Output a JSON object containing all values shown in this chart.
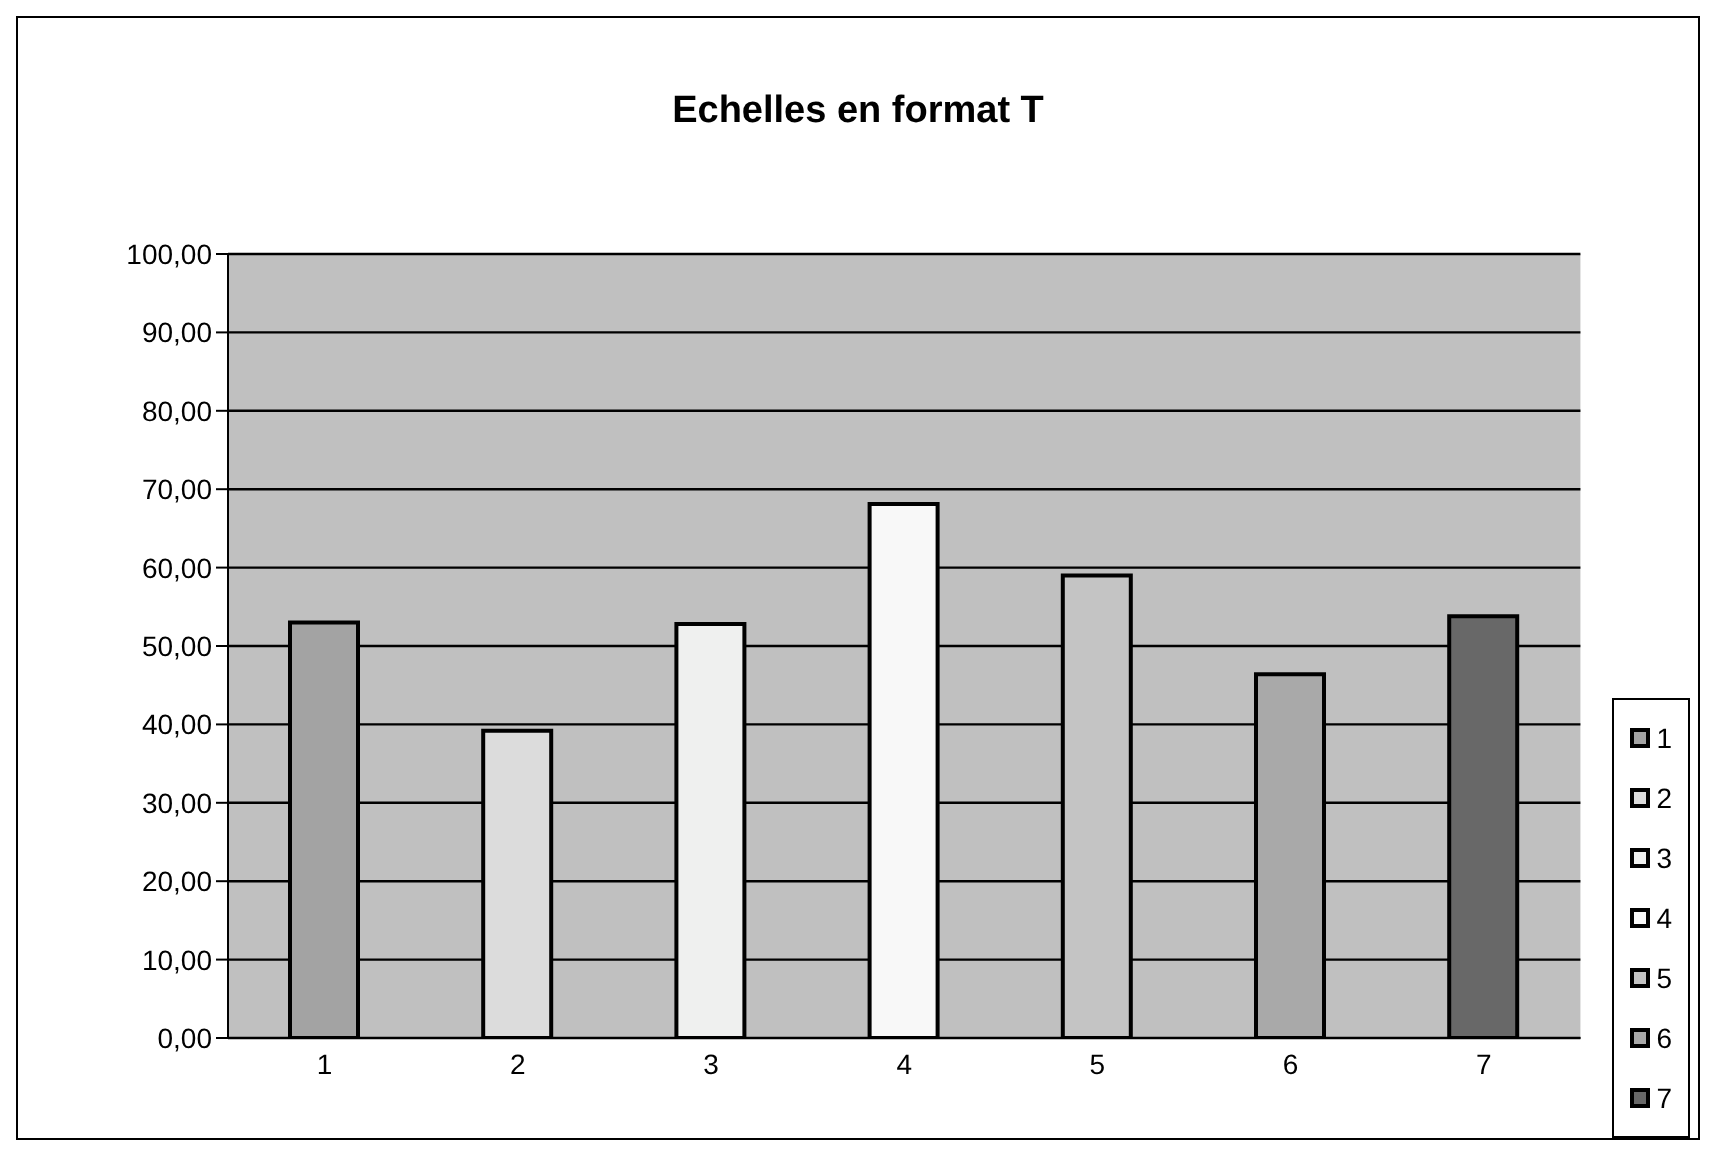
{
  "chart_data": {
    "type": "bar",
    "title": "Echelles en format T",
    "categories": [
      "1",
      "2",
      "3",
      "4",
      "5",
      "6",
      "7"
    ],
    "stacked": true,
    "series": [
      {
        "name": "1",
        "color": "#a3a3a3",
        "values": [
          53,
          null,
          null,
          null,
          null,
          null,
          null
        ]
      },
      {
        "name": "2",
        "color": "#dcdcdc",
        "values": [
          null,
          39.2,
          null,
          null,
          null,
          null,
          null
        ]
      },
      {
        "name": "3",
        "color": "#eff0ef",
        "values": [
          null,
          null,
          52.8,
          null,
          null,
          null,
          null
        ]
      },
      {
        "name": "4",
        "color": "#f8f8f8",
        "values": [
          null,
          null,
          null,
          68.1,
          null,
          null,
          null
        ]
      },
      {
        "name": "5",
        "color": "#c4c4c4",
        "values": [
          null,
          null,
          null,
          null,
          59,
          null,
          null
        ]
      },
      {
        "name": "6",
        "color": "#a9a9a9",
        "values": [
          null,
          null,
          null,
          null,
          null,
          46.4,
          null
        ]
      },
      {
        "name": "7",
        "color": "#686868",
        "values": [
          null,
          null,
          null,
          null,
          null,
          null,
          53.8
        ]
      }
    ],
    "ylim": [
      0,
      100
    ],
    "yticks": [
      {
        "value": 0,
        "label": "0,00"
      },
      {
        "value": 10,
        "label": "10,00"
      },
      {
        "value": 20,
        "label": "20,00"
      },
      {
        "value": 30,
        "label": "30,00"
      },
      {
        "value": 40,
        "label": "40,00"
      },
      {
        "value": 50,
        "label": "50,00"
      },
      {
        "value": 60,
        "label": "60,00"
      },
      {
        "value": 70,
        "label": "70,00"
      },
      {
        "value": 80,
        "label": "80,00"
      },
      {
        "value": 90,
        "label": "90,00"
      },
      {
        "value": 100,
        "label": "100,00"
      }
    ],
    "grid": "y",
    "legend": "bottom right"
  }
}
